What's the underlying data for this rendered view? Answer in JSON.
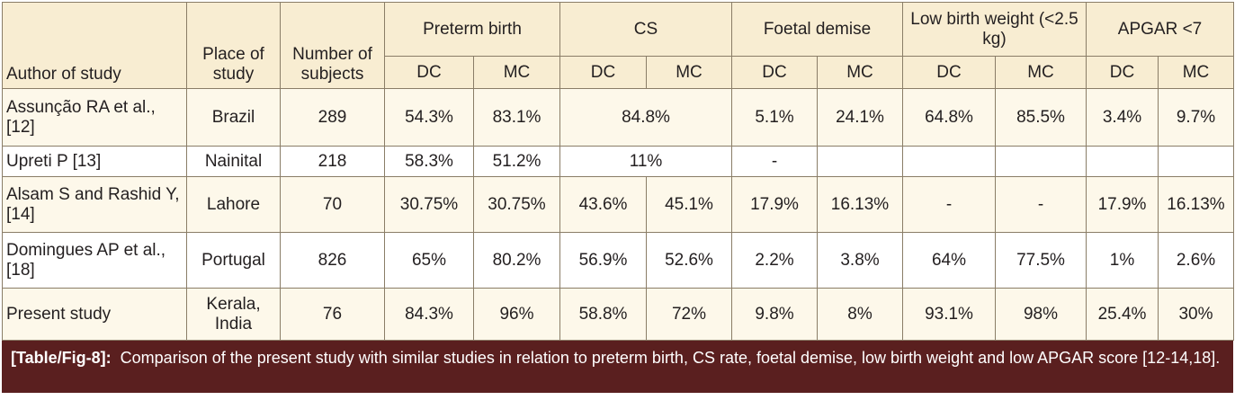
{
  "headers": {
    "author": "Author of study",
    "place": "Place of study",
    "subjects": "Number of subjects",
    "groups": [
      "Preterm birth",
      "CS",
      "Foetal demise",
      "Low birth weight (<2.5 kg)",
      "APGAR <7"
    ],
    "sub": [
      "DC",
      "MC"
    ]
  },
  "rows": [
    {
      "author": "Assunção RA et al., [12]",
      "place": "Brazil",
      "n": "289",
      "preterm_dc": "54.3%",
      "preterm_mc": "83.1%",
      "cs_merged": "84.8%",
      "fd_dc": "5.1%",
      "fd_mc": "24.1%",
      "lbw_dc": "64.8%",
      "lbw_mc": "85.5%",
      "apgar_dc": "3.4%",
      "apgar_mc": "9.7%"
    },
    {
      "author": "Upreti P [13]",
      "place": "Nainital",
      "n": "218",
      "preterm_dc": "58.3%",
      "preterm_mc": "51.2%",
      "cs_merged": "11%",
      "fd_dc": "-",
      "fd_mc": "",
      "lbw_dc": "",
      "lbw_mc": "",
      "apgar_dc": "",
      "apgar_mc": ""
    },
    {
      "author": "Alsam S and Rashid Y, [14]",
      "place": "Lahore",
      "n": "70",
      "preterm_dc": "30.75%",
      "preterm_mc": "30.75%",
      "cs_dc": "43.6%",
      "cs_mc": "45.1%",
      "fd_dc": "17.9%",
      "fd_mc": "16.13%",
      "lbw_dc": "-",
      "lbw_mc": "-",
      "apgar_dc": "17.9%",
      "apgar_mc": "16.13%"
    },
    {
      "author": "Domingues AP et al., [18]",
      "place": "Portugal",
      "n": "826",
      "preterm_dc": "65%",
      "preterm_mc": "80.2%",
      "cs_dc": "56.9%",
      "cs_mc": "52.6%",
      "fd_dc": "2.2%",
      "fd_mc": "3.8%",
      "lbw_dc": "64%",
      "lbw_mc": "77.5%",
      "apgar_dc": "1%",
      "apgar_mc": "2.6%"
    },
    {
      "author": "Present study",
      "place": "Kerala, India",
      "n": "76",
      "preterm_dc": "84.3%",
      "preterm_mc": "96%",
      "cs_dc": "58.8%",
      "cs_mc": "72%",
      "fd_dc": "9.8%",
      "fd_mc": "8%",
      "lbw_dc": "93.1%",
      "lbw_mc": "98%",
      "apgar_dc": "25.4%",
      "apgar_mc": "30%"
    }
  ],
  "caption": {
    "tag": "[Table/Fig-8]:",
    "text": "Comparison of the present study with similar studies in relation to preterm birth, CS rate, foetal demise, low birth weight and low APGAR score [12-14,18]."
  }
}
